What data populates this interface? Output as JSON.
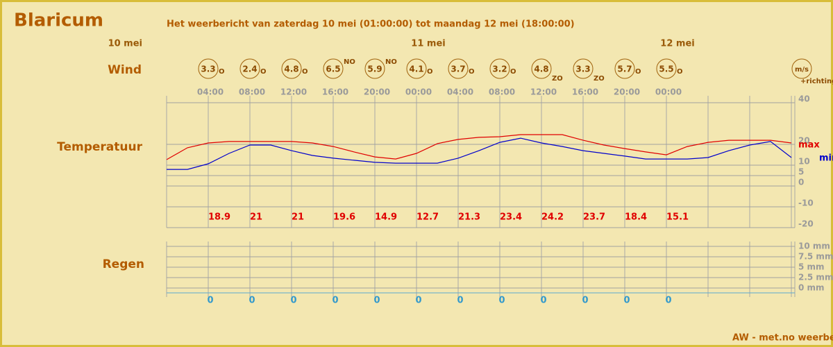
{
  "header": {
    "title": "Blaricum",
    "subtitle": "Het weerbericht van zaterdag 10 mei (01:00:00) tot maandag 12 mei (18:00:00)"
  },
  "dates": [
    "10 mei",
    "11 mei",
    "12 mei"
  ],
  "row_labels": {
    "wind": "Wind",
    "temperature": "Temperatuur",
    "rain": "Regen"
  },
  "wind": {
    "speeds": [
      3.3,
      2.4,
      4.8,
      6.5,
      5.9,
      4.1,
      3.7,
      3.2,
      4.8,
      3.3,
      5.7,
      5.5
    ],
    "directions": [
      "O",
      "O",
      "O",
      "NO",
      "NO",
      "O",
      "O",
      "O",
      "ZO",
      "ZO",
      "O",
      "O"
    ],
    "unit_label": "m/s",
    "direction_label": "+richting"
  },
  "times": [
    "04:00",
    "08:00",
    "12:00",
    "16:00",
    "20:00",
    "00:00",
    "04:00",
    "08:00",
    "12:00",
    "16:00",
    "20:00",
    "00:00"
  ],
  "chart_data": {
    "type": "line",
    "x": [
      0,
      2,
      4,
      6,
      8,
      10,
      12,
      14,
      16,
      18,
      20,
      22,
      24,
      26,
      28,
      30,
      32,
      34,
      36,
      38,
      40,
      42,
      44,
      46,
      48,
      50,
      52,
      54,
      56,
      58,
      60
    ],
    "xlim": [
      0,
      60.33
    ],
    "ylim": [
      -20,
      40
    ],
    "yticks": [
      40,
      20,
      10,
      5,
      0,
      -10,
      -20
    ],
    "series": [
      {
        "name": "max",
        "color": "#e00000",
        "values": [
          11,
          16.7,
          19,
          19.7,
          19.7,
          19.7,
          19.7,
          19,
          17.3,
          14.7,
          12.3,
          11.3,
          14,
          18.7,
          20.7,
          21.7,
          22,
          23,
          23,
          23,
          20.3,
          18,
          16.3,
          14.7,
          13.3,
          17.3,
          19.3,
          20.3,
          20.3,
          20.3,
          19
        ]
      },
      {
        "name": "min",
        "color": "#0000cc",
        "values": [
          6.3,
          6.3,
          9,
          14,
          18,
          18,
          15.3,
          13,
          11.7,
          10.7,
          9.7,
          9.3,
          9.3,
          9.3,
          11.7,
          15.3,
          19.3,
          21.3,
          19,
          17.3,
          15.3,
          14,
          12.7,
          11.3,
          11.3,
          11.3,
          12,
          15.3,
          18,
          19.7,
          12
        ]
      }
    ]
  },
  "temperature_labels": [
    18.9,
    21,
    21,
    19.6,
    14.9,
    12.7,
    21.3,
    23.4,
    24.2,
    23.7,
    18.4,
    15.1
  ],
  "rain": {
    "ticks": [
      "10 mm",
      "7.5 mm",
      "5 mm",
      "2.5 mm",
      "0 mm"
    ],
    "values": [
      0,
      0,
      0,
      0,
      0,
      0,
      0,
      0,
      0,
      0,
      0,
      0
    ]
  },
  "footer": "AW - met.no weerbericht"
}
